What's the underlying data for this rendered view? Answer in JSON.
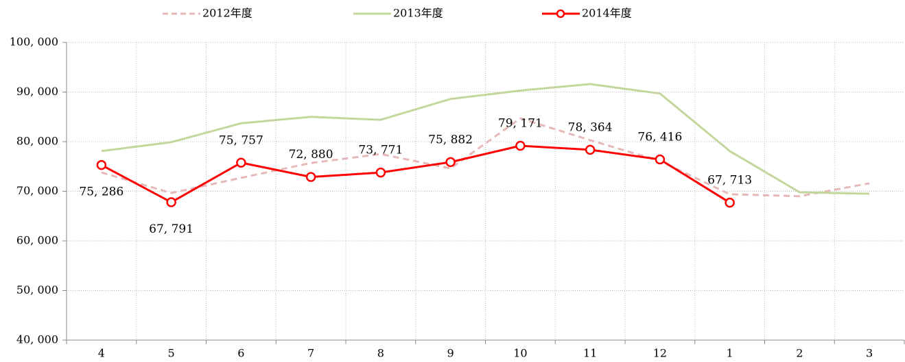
{
  "chart_data": {
    "type": "line",
    "categories": [
      "4",
      "5",
      "6",
      "7",
      "8",
      "9",
      "10",
      "11",
      "12",
      "1",
      "2",
      "3"
    ],
    "series": [
      {
        "name": "2012年度",
        "color": "#e6b8b7",
        "line_style": "dashed",
        "values": [
          73800,
          69650,
          72700,
          75700,
          77500,
          74600,
          84700,
          80300,
          76100,
          69400,
          69000,
          71600
        ]
      },
      {
        "name": "2013年度",
        "color": "#c3d69b",
        "line_style": "solid",
        "values": [
          78100,
          79900,
          83700,
          85000,
          84400,
          88600,
          90300,
          91600,
          89700,
          78100,
          69800,
          69500
        ]
      },
      {
        "name": "2014年度",
        "color": "#ff0000",
        "line_style": "solid",
        "marker": "circle",
        "values": [
          75286,
          67791,
          75757,
          72880,
          73771,
          75882,
          79171,
          78364,
          76416,
          67713,
          null,
          null
        ],
        "value_labels": [
          "75, 286",
          "67, 791",
          "75, 757",
          "72, 880",
          "73, 771",
          "75, 882",
          "79, 171",
          "78, 364",
          "76, 416",
          "67, 713",
          null,
          null
        ]
      }
    ],
    "ylim": [
      40000,
      100000
    ],
    "yticks": [
      {
        "value": 40000,
        "label": "40, 000"
      },
      {
        "value": 50000,
        "label": "50, 000"
      },
      {
        "value": 60000,
        "label": "60, 000"
      },
      {
        "value": 70000,
        "label": "70, 000"
      },
      {
        "value": 80000,
        "label": "80, 000"
      },
      {
        "value": 90000,
        "label": "90, 000"
      },
      {
        "value": 100000,
        "label": "100, 000"
      }
    ],
    "grid": true,
    "legend": "top"
  }
}
